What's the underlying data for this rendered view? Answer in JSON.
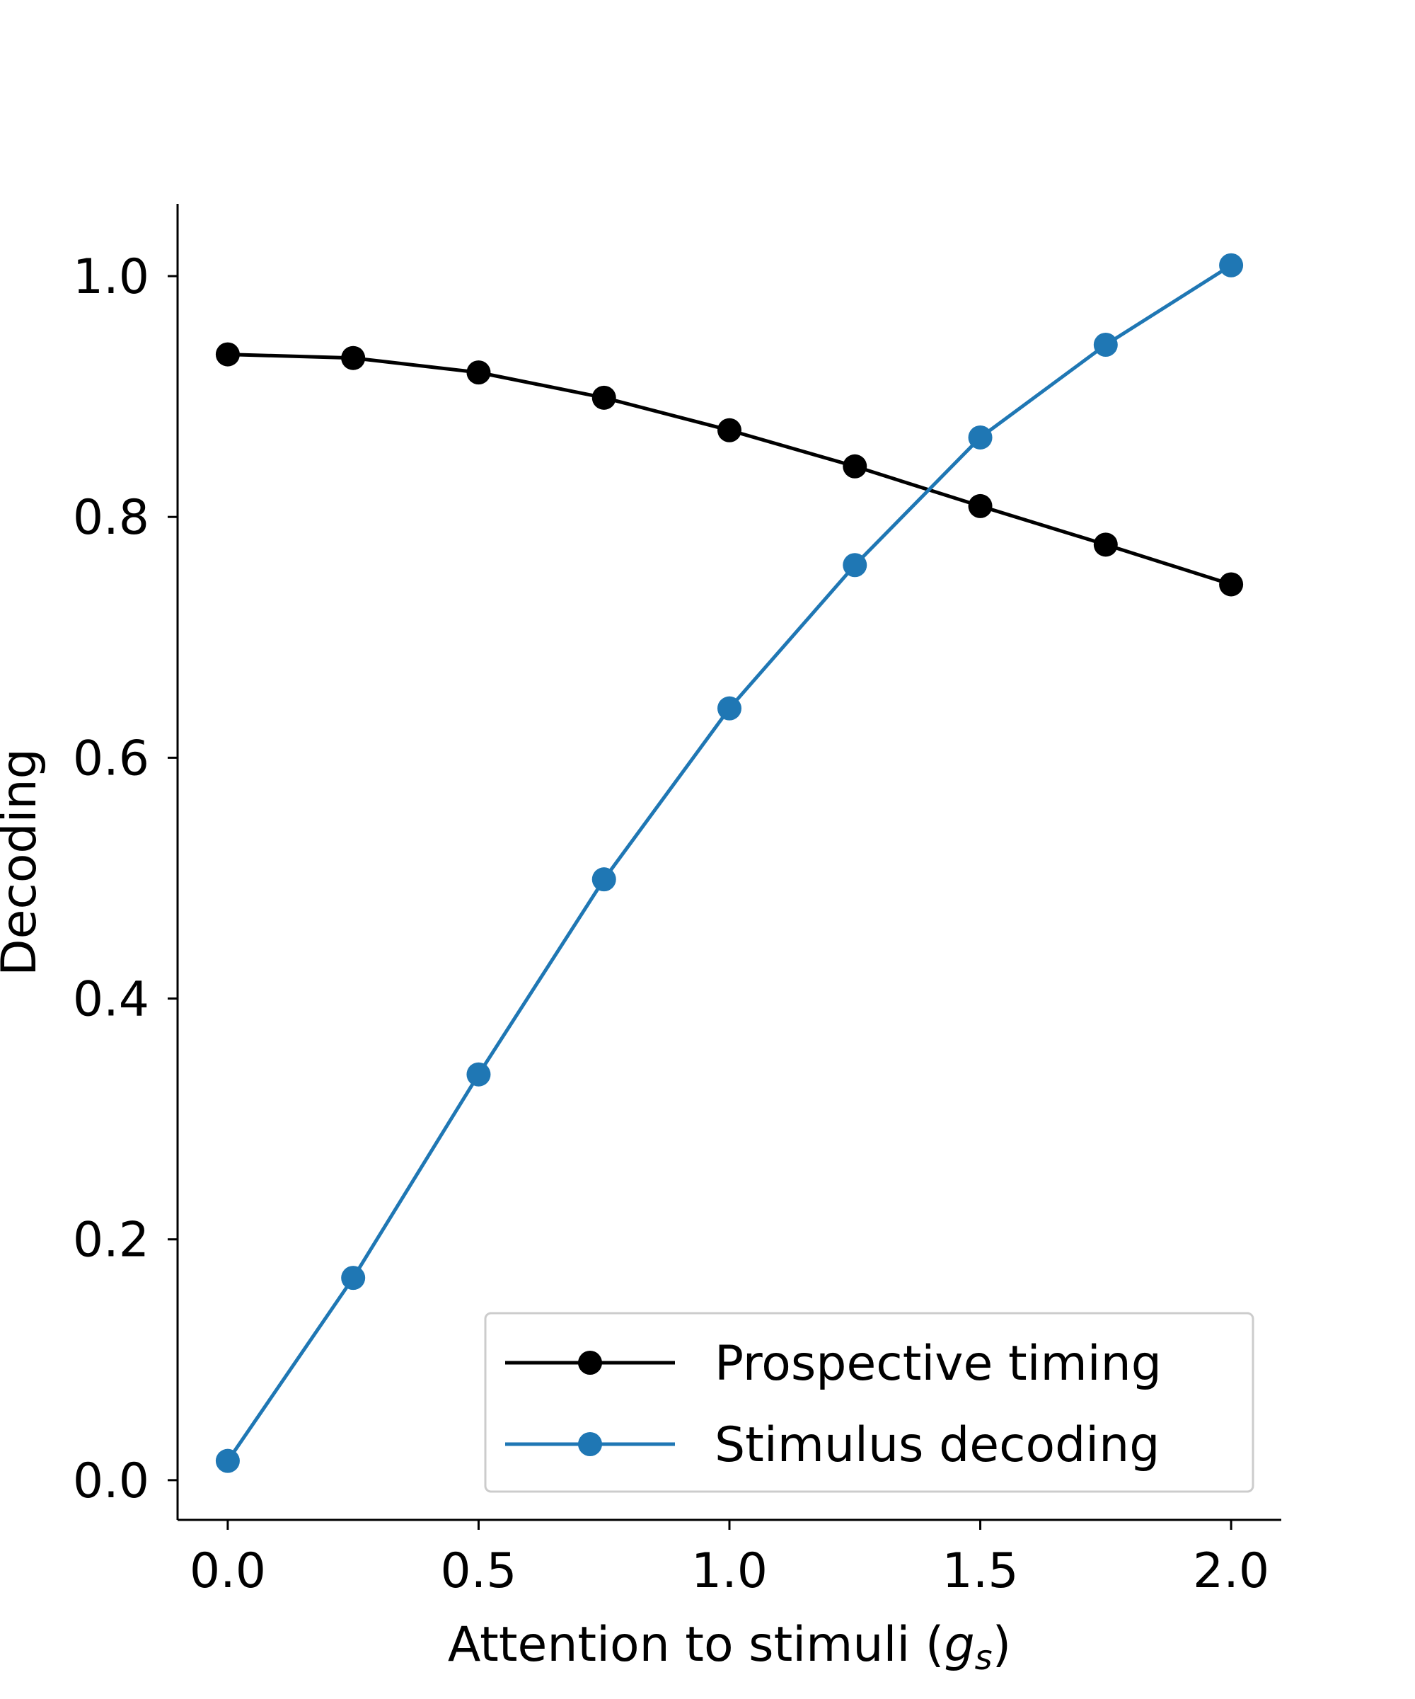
{
  "chart_data": {
    "type": "line",
    "title": "",
    "xlabel_main": "Attention to stimuli (",
    "xlabel_symbol": "g",
    "xlabel_subscript": "s",
    "xlabel_close": ")",
    "ylabel": "Decoding",
    "xlim": [
      -0.1,
      2.1
    ],
    "ylim": [
      -0.033,
      1.06
    ],
    "xticks": [
      0.0,
      0.5,
      1.0,
      1.5,
      2.0
    ],
    "xtick_labels": [
      "0.0",
      "0.5",
      "1.0",
      "1.5",
      "2.0"
    ],
    "yticks": [
      0.0,
      0.2,
      0.4,
      0.6,
      0.8,
      1.0
    ],
    "ytick_labels": [
      "0.0",
      "0.2",
      "0.4",
      "0.6",
      "0.8",
      "1.0"
    ],
    "grid": false,
    "legend_position": "lower-right",
    "x": [
      0.0,
      0.25,
      0.5,
      0.75,
      1.0,
      1.25,
      1.5,
      1.75,
      2.0
    ],
    "series": [
      {
        "name": "Prospective timing",
        "color": "#000000",
        "values": [
          0.935,
          0.932,
          0.92,
          0.899,
          0.872,
          0.842,
          0.809,
          0.777,
          0.744
        ]
      },
      {
        "name": "Stimulus decoding",
        "color": "#1f77b4",
        "values": [
          0.016,
          0.168,
          0.337,
          0.499,
          0.641,
          0.76,
          0.866,
          0.943,
          1.009
        ]
      }
    ]
  }
}
